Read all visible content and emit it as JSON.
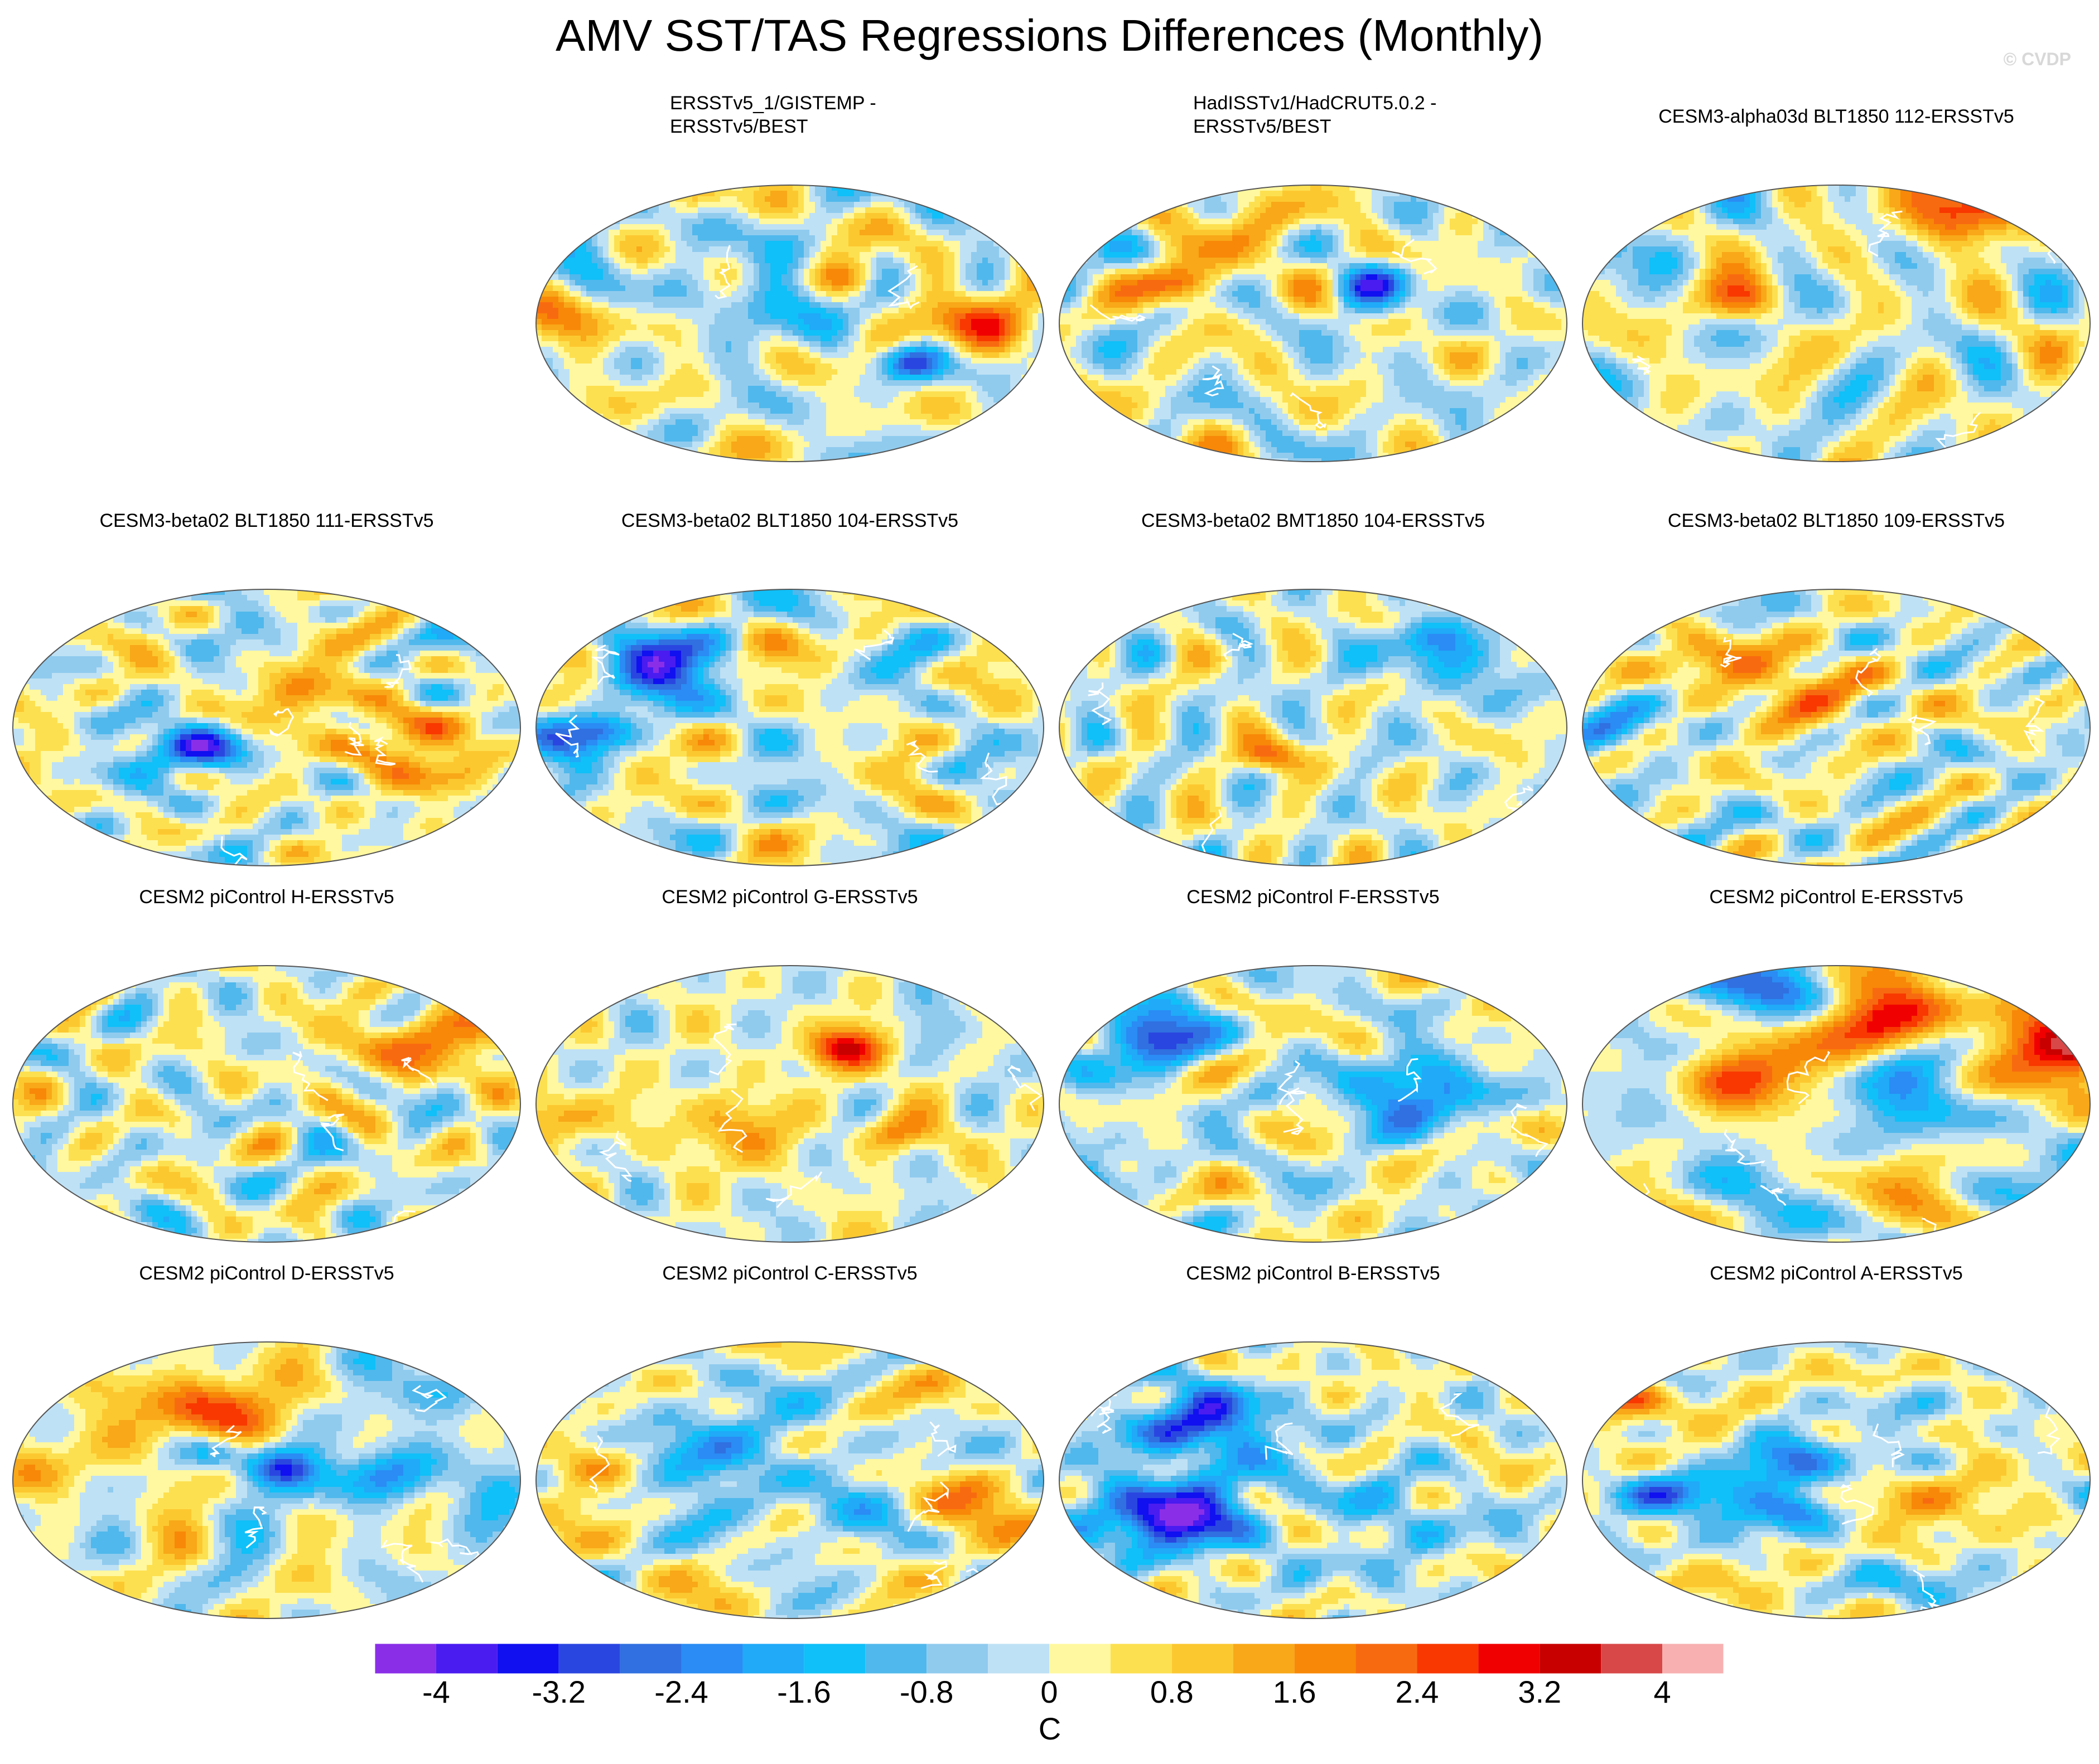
{
  "title": "AMV SST/TAS Regressions Differences (Monthly)",
  "credit": "© CVDP",
  "chart_data": {
    "type": "heatmap",
    "projection": "global map panels",
    "panels": [
      {
        "id": "p1",
        "title_lines": [
          "ERSSTv5_1/GISTEMP -",
          "ERSSTv5/BEST"
        ],
        "seed": 11
      },
      {
        "id": "p2",
        "title_lines": [
          "HadISSTv1/HadCRUT5.0.2 -",
          "ERSSTv5/BEST"
        ],
        "seed": 23
      },
      {
        "id": "p3",
        "title_lines": [
          "CESM3-alpha03d BLT1850 112-ERSSTv5"
        ],
        "seed": 37
      },
      {
        "id": "p4",
        "title_lines": [
          "CESM3-beta02 BLT1850 111-ERSSTv5"
        ],
        "seed": 41
      },
      {
        "id": "p5",
        "title_lines": [
          "CESM3-beta02 BLT1850 104-ERSSTv5"
        ],
        "seed": 53
      },
      {
        "id": "p6",
        "title_lines": [
          "CESM3-beta02 BMT1850 104-ERSSTv5"
        ],
        "seed": 67
      },
      {
        "id": "p7",
        "title_lines": [
          "CESM3-beta02 BLT1850 109-ERSSTv5"
        ],
        "seed": 71
      },
      {
        "id": "p8",
        "title_lines": [
          "CESM2 piControl H-ERSSTv5"
        ],
        "seed": 83
      },
      {
        "id": "p9",
        "title_lines": [
          "CESM2 piControl G-ERSSTv5"
        ],
        "seed": 97
      },
      {
        "id": "p10",
        "title_lines": [
          "CESM2 piControl F-ERSSTv5"
        ],
        "seed": 101
      },
      {
        "id": "p11",
        "title_lines": [
          "CESM2 piControl E-ERSSTv5"
        ],
        "seed": 113
      },
      {
        "id": "p12",
        "title_lines": [
          "CESM2 piControl D-ERSSTv5"
        ],
        "seed": 127
      },
      {
        "id": "p13",
        "title_lines": [
          "CESM2 piControl C-ERSSTv5"
        ],
        "seed": 131
      },
      {
        "id": "p14",
        "title_lines": [
          "CESM2 piControl B-ERSSTv5"
        ],
        "seed": 149
      },
      {
        "id": "p15",
        "title_lines": [
          "CESM2 piControl A-ERSSTv5"
        ],
        "seed": 157
      }
    ],
    "colorbar": {
      "units": "C",
      "levels": [
        -4.4,
        -4,
        -3.6,
        -3.2,
        -2.8,
        -2.4,
        -2,
        -1.6,
        -1.2,
        -0.8,
        -0.4,
        0,
        0.4,
        0.8,
        1.2,
        1.6,
        2,
        2.4,
        2.8,
        3.2,
        3.6,
        4,
        4.4
      ],
      "tick_labels": [
        "-4",
        "-3.2",
        "-2.4",
        "-1.6",
        "-0.8",
        "0",
        "0.8",
        "1.6",
        "2.4",
        "3.2",
        "4"
      ],
      "colors": [
        "#8a2ee8",
        "#4a1cf0",
        "#1010f0",
        "#2a46e0",
        "#3070e0",
        "#2a8cf4",
        "#20aaf8",
        "#10c0f8",
        "#50b8ec",
        "#90cbee",
        "#bfe1f5",
        "#fff8a0",
        "#fde050",
        "#fcc830",
        "#f8a818",
        "#f88808",
        "#f86a10",
        "#f83800",
        "#f00000",
        "#c80000",
        "#d84848",
        "#f8b0b0"
      ]
    }
  }
}
